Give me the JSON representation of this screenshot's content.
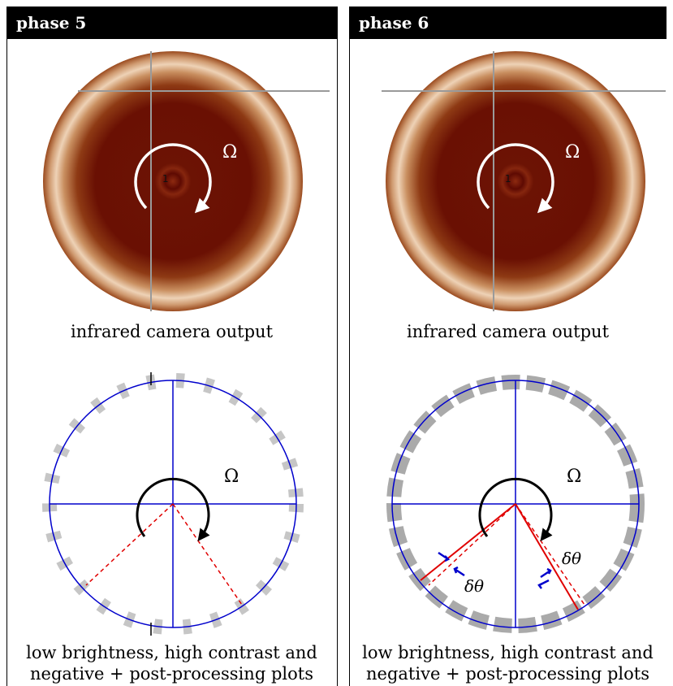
{
  "panels": [
    {
      "title": "phase 5",
      "ir_caption": "infrared camera output",
      "omega_symbol": "Ω",
      "plot_caption_line1": "low brightness, high contrast and",
      "plot_caption_line2": "negative + post-processing plots"
    },
    {
      "title": "phase 6",
      "ir_caption": "infrared camera output",
      "omega_symbol": "Ω",
      "delta_theta_label": "δθ",
      "plot_caption_line1": "low brightness, high contrast and",
      "plot_caption_line2": "negative + post-processing plots"
    }
  ],
  "colors": {
    "header_bg": "#000000",
    "ir_dark": "#6e0f04",
    "ir_ring": "#e8c8a8",
    "grid_blue": "#0000cc",
    "dashed_red": "#e00000",
    "rotation_white": "#ffffff",
    "rotation_black": "#000000"
  }
}
